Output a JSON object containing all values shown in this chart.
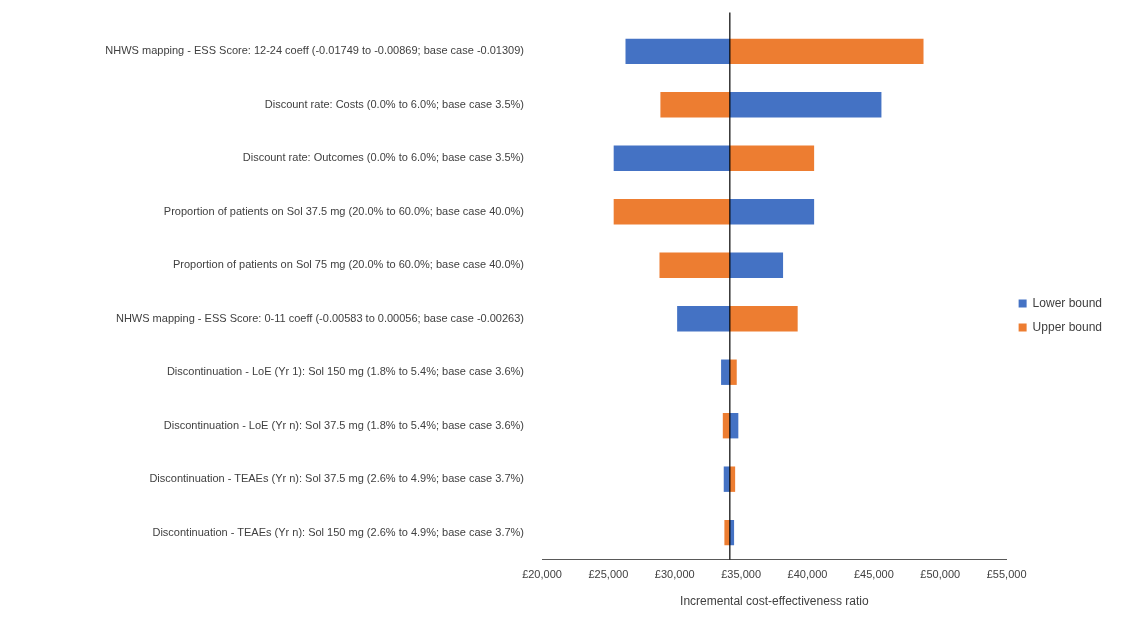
{
  "chart_data": {
    "type": "bar",
    "orientation": "horizontal",
    "xlabel": "Incremental cost-effectiveness ratio",
    "categories": [
      "NHWS mapping - ESS Score: 12-24 coeff (-0.01749 to -0.00869; base case -0.01309)",
      "Discount rate: Costs (0.0% to 6.0%; base case 3.5%)",
      "Discount rate: Outcomes (0.0% to 6.0%; base case 3.5%)",
      "Proportion of patients on Sol 37.5 mg (20.0% to 60.0%; base case 40.0%)",
      "Proportion of patients on Sol 75 mg (20.0% to 60.0%; base case 40.0%)",
      "NHWS mapping - ESS Score: 0-11 coeff (-0.00583 to 0.00056; base case -0.00263)",
      "Discontinuation - LoE (Yr 1): Sol 150 mg (1.8% to 5.4%; base case 3.6%)",
      "Discontinuation - LoE (Yr n): Sol 37.5 mg (1.8% to 5.4%; base case 3.6%)",
      "Discontinuation - TEAEs (Yr n): Sol 37.5 mg (2.6% to 4.9%; base case 3.7%)",
      "Discontinuation - TEAEs (Yr n): Sol 150 mg (2.6% to 4.9%; base case 3.7%)"
    ],
    "series": [
      {
        "name": "Lower bound",
        "color": "#4472c4",
        "base": [
          34150,
          34150,
          34150,
          34150,
          34150,
          34150,
          34150,
          34150,
          34150,
          34150
        ],
        "values": [
          -7860,
          11420,
          -8750,
          6350,
          4010,
          -3970,
          -660,
          640,
          -460,
          320
        ]
      },
      {
        "name": "Upper bound",
        "color": "#ed7d31",
        "base": [
          34150,
          34150,
          34150,
          34150,
          34150,
          34150,
          34150,
          34150,
          34150,
          34150
        ],
        "values": [
          14590,
          -5230,
          6350,
          -8750,
          -5300,
          5110,
          520,
          -530,
          400,
          -410
        ]
      }
    ],
    "xlim": [
      20000,
      55000
    ],
    "xticks": [
      {
        "value": 20000,
        "label": "£20,000"
      },
      {
        "value": 25000,
        "label": "£25,000"
      },
      {
        "value": 30000,
        "label": "£30,000"
      },
      {
        "value": 35000,
        "label": "£35,000"
      },
      {
        "value": 40000,
        "label": "£40,000"
      },
      {
        "value": 45000,
        "label": "£45,000"
      },
      {
        "value": 50000,
        "label": "£50,000"
      },
      {
        "value": 55000,
        "label": "£55,000"
      }
    ],
    "ref_lines": [
      {
        "axis": "x",
        "value": 34150,
        "color": "#000000"
      }
    ],
    "grid": false,
    "legend": "right"
  }
}
